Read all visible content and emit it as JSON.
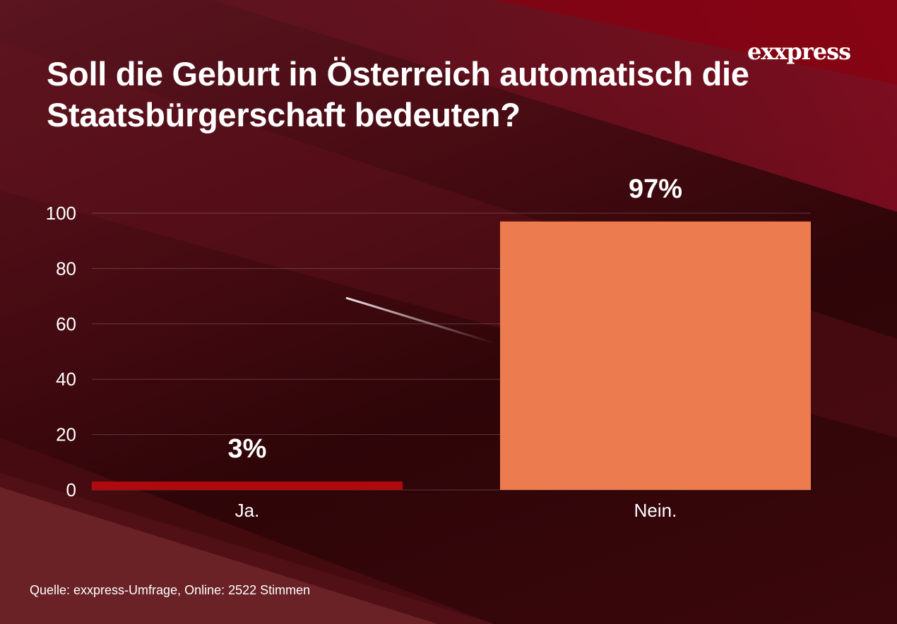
{
  "logo": "exxpress",
  "source": "Quelle:  exxpress-Umfrage, Online: 2522 Stimmen",
  "chart_data": {
    "type": "bar",
    "title": "Soll die Geburt in Österreich automatisch die Staatsbürgerschaft bedeuten?",
    "categories": [
      "Ja.",
      "Nein."
    ],
    "values": [
      3,
      97
    ],
    "data_labels": [
      "3%",
      "97%"
    ],
    "colors": [
      "#b00a0e",
      "#ec7c50"
    ],
    "yticks": [
      "0",
      "20",
      "40",
      "60",
      "80",
      "100"
    ],
    "ylim": [
      0,
      100
    ],
    "grid": true,
    "xlabel": "",
    "ylabel": ""
  }
}
